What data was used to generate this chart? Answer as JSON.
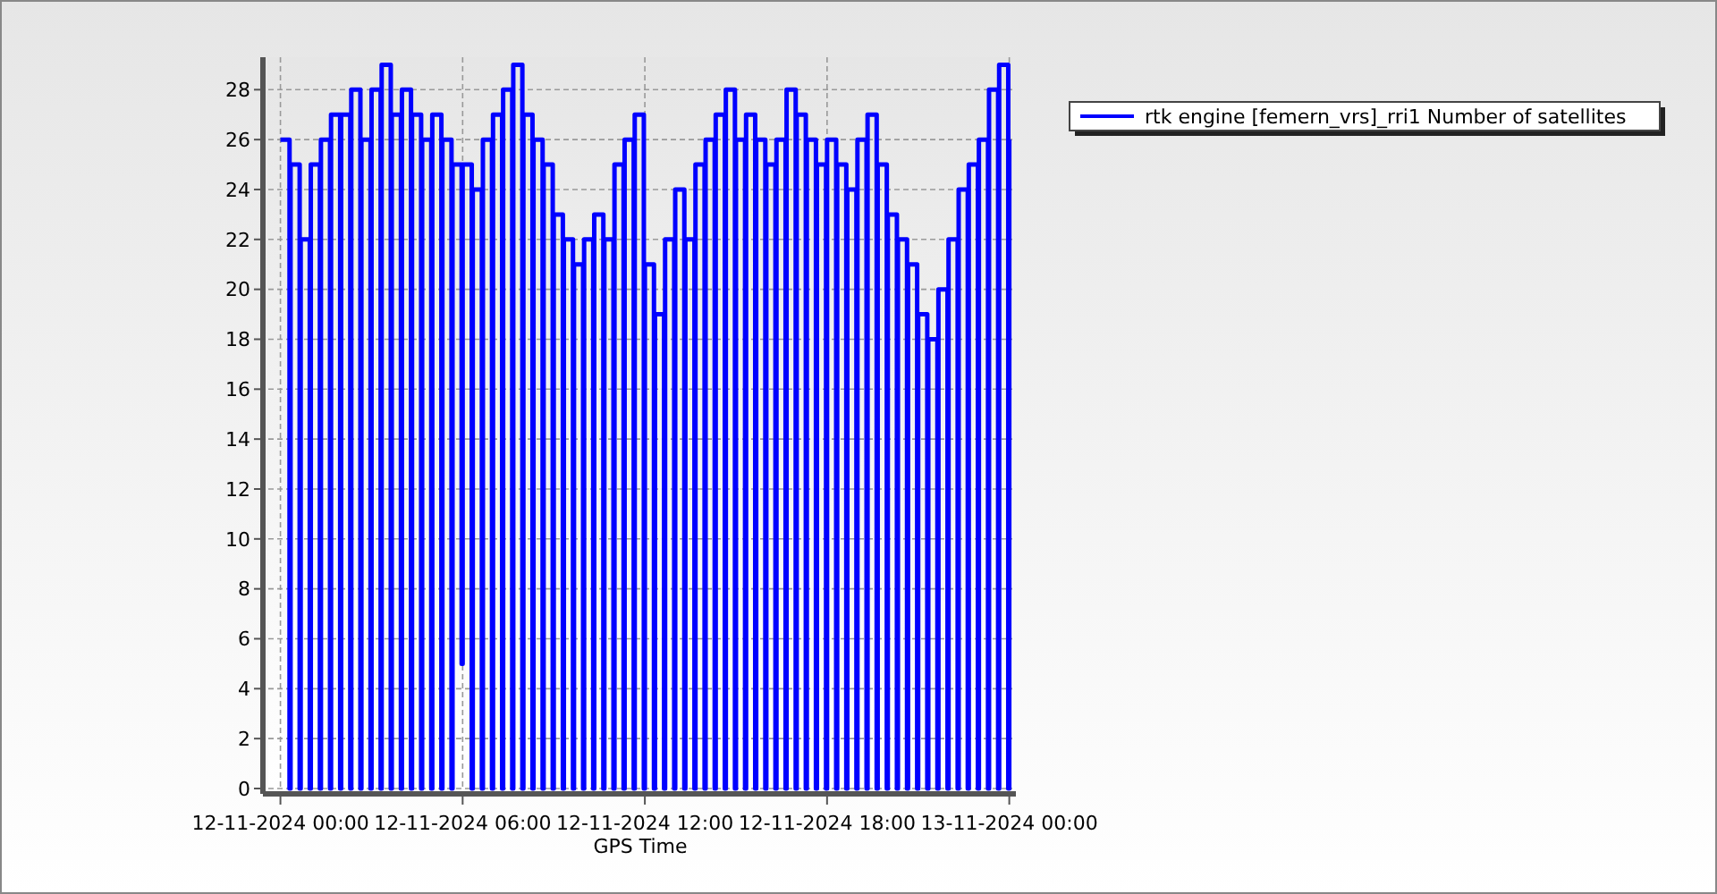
{
  "chart_data": {
    "type": "step",
    "xlabel": "GPS Time",
    "x": [
      "2024-11-12T00:00",
      "2024-11-12T00:18",
      "2024-11-12T00:20",
      "2024-11-12T00:38",
      "2024-11-12T00:40",
      "2024-11-12T00:58",
      "2024-11-12T01:00",
      "2024-11-12T01:18",
      "2024-11-12T01:20",
      "2024-11-12T01:38",
      "2024-11-12T01:40",
      "2024-11-12T01:58",
      "2024-11-12T02:00",
      "2024-11-12T02:18",
      "2024-11-12T02:20",
      "2024-11-12T02:38",
      "2024-11-12T02:40",
      "2024-11-12T02:58",
      "2024-11-12T03:00",
      "2024-11-12T03:18",
      "2024-11-12T03:20",
      "2024-11-12T03:38",
      "2024-11-12T03:40",
      "2024-11-12T03:58",
      "2024-11-12T04:00",
      "2024-11-12T04:18",
      "2024-11-12T04:20",
      "2024-11-12T04:38",
      "2024-11-12T04:40",
      "2024-11-12T04:58",
      "2024-11-12T05:00",
      "2024-11-12T05:18",
      "2024-11-12T05:20",
      "2024-11-12T05:38",
      "2024-11-12T05:40",
      "2024-11-12T05:58",
      "2024-11-12T06:00",
      "2024-11-12T06:18",
      "2024-11-12T06:20",
      "2024-11-12T06:38",
      "2024-11-12T06:40",
      "2024-11-12T06:58",
      "2024-11-12T07:00",
      "2024-11-12T07:18",
      "2024-11-12T07:20",
      "2024-11-12T07:38",
      "2024-11-12T07:40",
      "2024-11-12T07:58",
      "2024-11-12T08:00",
      "2024-11-12T08:18",
      "2024-11-12T08:20",
      "2024-11-12T08:38",
      "2024-11-12T08:40",
      "2024-11-12T08:58",
      "2024-11-12T09:00",
      "2024-11-12T09:18",
      "2024-11-12T09:20",
      "2024-11-12T09:38",
      "2024-11-12T09:40",
      "2024-11-12T09:58",
      "2024-11-12T10:00",
      "2024-11-12T10:18",
      "2024-11-12T10:20",
      "2024-11-12T10:38",
      "2024-11-12T10:40",
      "2024-11-12T10:58",
      "2024-11-12T11:00",
      "2024-11-12T11:18",
      "2024-11-12T11:20",
      "2024-11-12T11:38",
      "2024-11-12T11:40",
      "2024-11-12T11:58",
      "2024-11-12T12:00",
      "2024-11-12T12:18",
      "2024-11-12T12:20",
      "2024-11-12T12:38",
      "2024-11-12T12:40",
      "2024-11-12T12:58",
      "2024-11-12T13:00",
      "2024-11-12T13:18",
      "2024-11-12T13:20",
      "2024-11-12T13:38",
      "2024-11-12T13:40",
      "2024-11-12T13:58",
      "2024-11-12T14:00",
      "2024-11-12T14:18",
      "2024-11-12T14:20",
      "2024-11-12T14:38",
      "2024-11-12T14:40",
      "2024-11-12T14:58",
      "2024-11-12T15:00",
      "2024-11-12T15:18",
      "2024-11-12T15:20",
      "2024-11-12T15:38",
      "2024-11-12T15:40",
      "2024-11-12T15:58",
      "2024-11-12T16:00",
      "2024-11-12T16:18",
      "2024-11-12T16:20",
      "2024-11-12T16:38",
      "2024-11-12T16:40",
      "2024-11-12T16:58",
      "2024-11-12T17:00",
      "2024-11-12T17:18",
      "2024-11-12T17:20",
      "2024-11-12T17:38",
      "2024-11-12T17:40",
      "2024-11-12T17:58",
      "2024-11-12T18:00",
      "2024-11-12T18:18",
      "2024-11-12T18:20",
      "2024-11-12T18:38",
      "2024-11-12T18:40",
      "2024-11-12T18:58",
      "2024-11-12T19:00",
      "2024-11-12T19:18",
      "2024-11-12T19:20",
      "2024-11-12T19:38",
      "2024-11-12T19:40",
      "2024-11-12T19:58",
      "2024-11-12T20:00",
      "2024-11-12T20:18",
      "2024-11-12T20:20",
      "2024-11-12T20:38",
      "2024-11-12T20:40",
      "2024-11-12T20:58",
      "2024-11-12T21:00",
      "2024-11-12T21:18",
      "2024-11-12T21:20",
      "2024-11-12T21:38",
      "2024-11-12T21:40",
      "2024-11-12T21:58",
      "2024-11-12T22:00",
      "2024-11-12T22:18",
      "2024-11-12T22:20",
      "2024-11-12T22:38",
      "2024-11-12T22:40",
      "2024-11-12T22:58",
      "2024-11-12T23:00",
      "2024-11-12T23:18",
      "2024-11-12T23:20",
      "2024-11-12T23:38",
      "2024-11-12T23:40",
      "2024-11-12T23:58",
      "2024-11-13T00:00"
    ],
    "series": [
      {
        "name": "rtk engine [femern_vrs]_rri1 Number of satellites",
        "color": "#0000ff",
        "values": [
          26,
          0,
          25,
          0,
          22,
          0,
          25,
          0,
          26,
          0,
          27,
          0,
          27,
          0,
          28,
          0,
          26,
          0,
          28,
          0,
          29,
          0,
          27,
          0,
          28,
          0,
          27,
          0,
          26,
          0,
          27,
          0,
          26,
          0,
          25,
          5,
          25,
          0,
          24,
          0,
          26,
          0,
          27,
          0,
          28,
          0,
          29,
          0,
          27,
          0,
          26,
          0,
          25,
          0,
          23,
          0,
          22,
          0,
          21,
          0,
          22,
          0,
          23,
          0,
          22,
          0,
          25,
          0,
          26,
          0,
          27,
          0,
          21,
          0,
          19,
          0,
          22,
          0,
          24,
          0,
          22,
          0,
          25,
          0,
          26,
          0,
          27,
          0,
          28,
          0,
          26,
          0,
          27,
          0,
          26,
          0,
          25,
          0,
          26,
          0,
          28,
          0,
          27,
          0,
          26,
          0,
          25,
          0,
          26,
          0,
          25,
          0,
          24,
          0,
          26,
          0,
          27,
          0,
          25,
          0,
          23,
          0,
          22,
          0,
          21,
          0,
          19,
          0,
          18,
          0,
          20,
          0,
          22,
          0,
          24,
          0,
          25,
          0,
          26,
          0,
          28,
          0,
          29,
          0,
          26
        ]
      }
    ],
    "xlim": [
      "2024-11-11T23:36",
      "2024-11-13T00:06"
    ],
    "xticks": [
      {
        "value": "2024-11-12T00:00",
        "label": "12-11-2024 00:00"
      },
      {
        "value": "2024-11-12T06:00",
        "label": "12-11-2024 06:00"
      },
      {
        "value": "2024-11-12T12:00",
        "label": "12-11-2024 12:00"
      },
      {
        "value": "2024-11-12T18:00",
        "label": "12-11-2024 18:00"
      },
      {
        "value": "2024-11-13T00:00",
        "label": "13-11-2024 00:00"
      }
    ],
    "ylim": [
      0,
      29.3
    ],
    "yticks": [
      0,
      2,
      4,
      6,
      8,
      10,
      12,
      14,
      16,
      18,
      20,
      22,
      24,
      26,
      28
    ],
    "grid": true,
    "legend": "top right",
    "line_style": "solid"
  }
}
